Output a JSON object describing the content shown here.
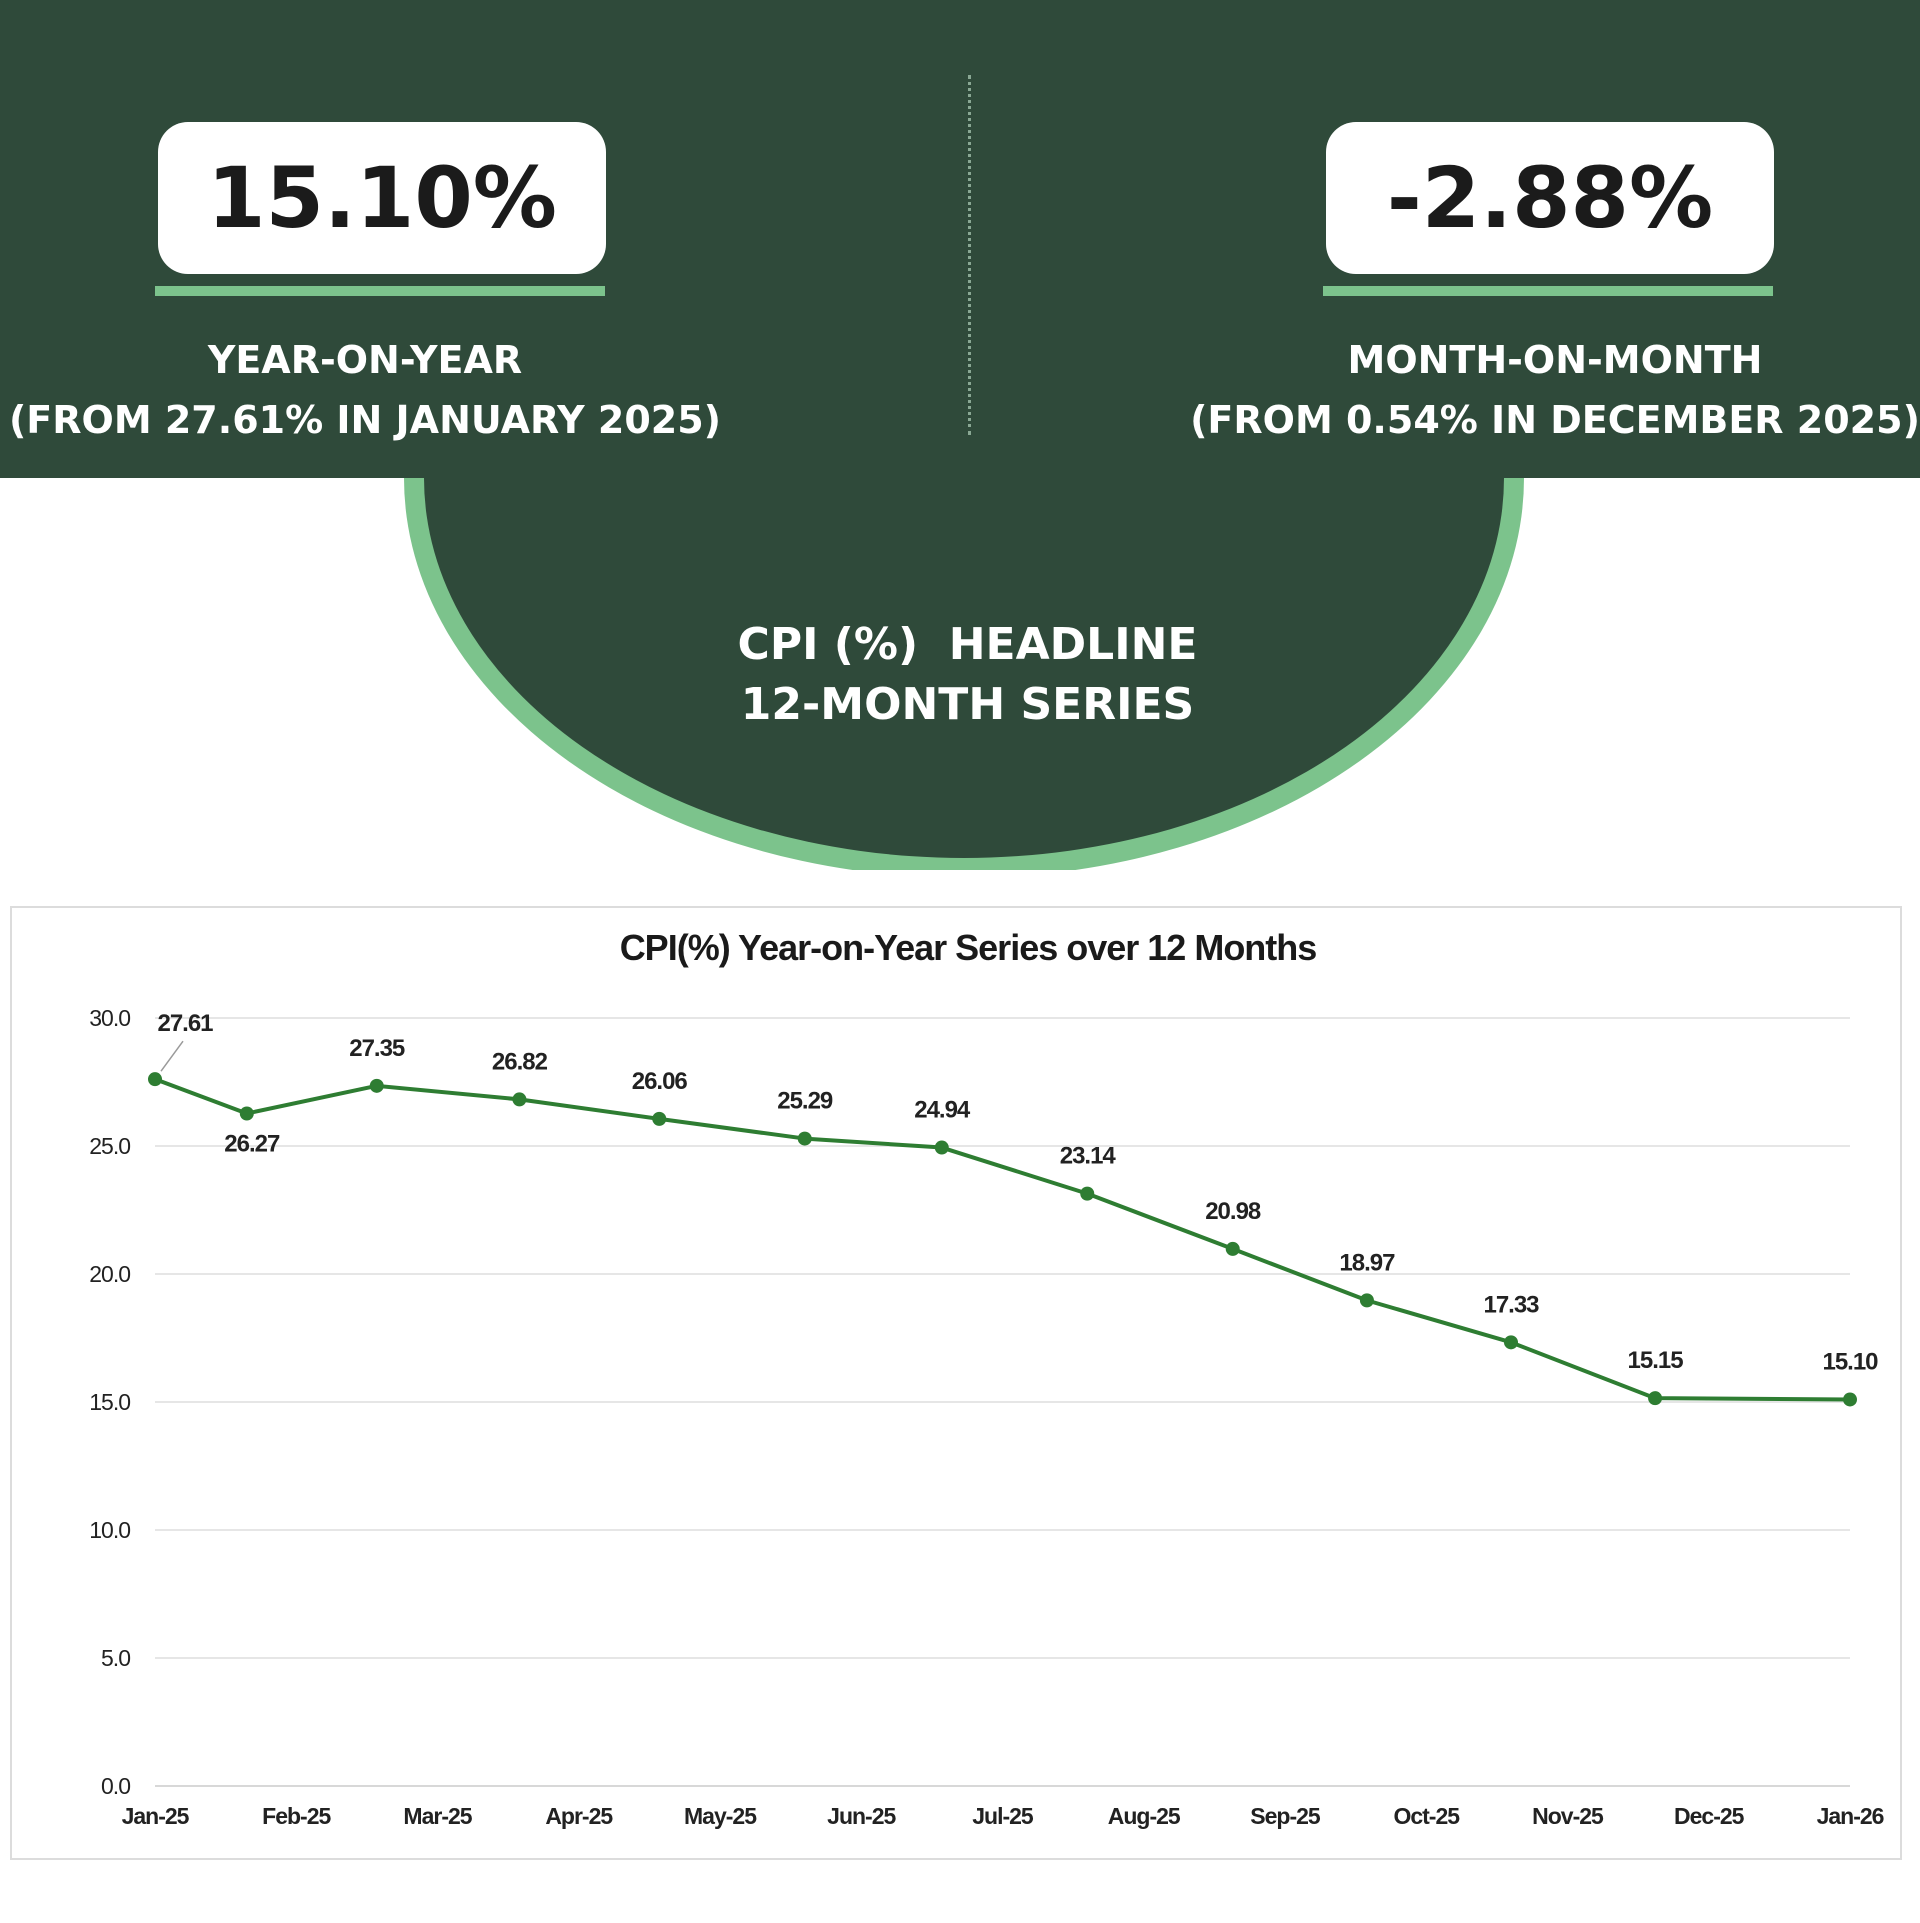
{
  "header": {
    "yoy": {
      "value": "15.10%",
      "label": "YEAR-ON-YEAR",
      "sub": "(FROM 27.61% IN JANUARY 2025)"
    },
    "mom": {
      "value": "-2.88%",
      "label": "MONTH-ON-MONTH",
      "sub": "(FROM 0.54% IN DECEMBER 2025)"
    },
    "headline": "CPI (%)  HEADLINE\n12-MONTH SERIES"
  },
  "colors": {
    "banner": "#2f4a3a",
    "accent": "#7cc38c",
    "line": "#2e7d32"
  },
  "chart_data": {
    "type": "line",
    "title": "CPI(%) Year-on-Year Series over 12 Months",
    "xlabel": "",
    "ylabel": "",
    "categories": [
      "Jan-25",
      "Feb-25",
      "Mar-25",
      "Apr-25",
      "May-25",
      "Jun-25",
      "Jul-25",
      "Aug-25",
      "Sep-25",
      "Oct-25",
      "Nov-25",
      "Dec-25",
      "Jan-26"
    ],
    "series": [
      {
        "values": [
          27.61,
          26.27,
          27.35,
          26.82,
          26.06,
          25.29,
          24.94,
          23.14,
          20.98,
          18.97,
          17.33,
          15.15,
          15.1
        ]
      }
    ],
    "data_labels": [
      "27.61",
      "26.27",
      "27.35",
      "26.82",
      "26.06",
      "25.29",
      "24.94",
      "23.14",
      "20.98",
      "18.97",
      "17.33",
      "15.15",
      "15.10"
    ],
    "ylim": [
      0,
      30
    ],
    "yticks": [
      "0.0",
      "5.0",
      "10.0",
      "15.0",
      "20.0",
      "25.0",
      "30.0"
    ],
    "grid": true,
    "legend": false
  }
}
